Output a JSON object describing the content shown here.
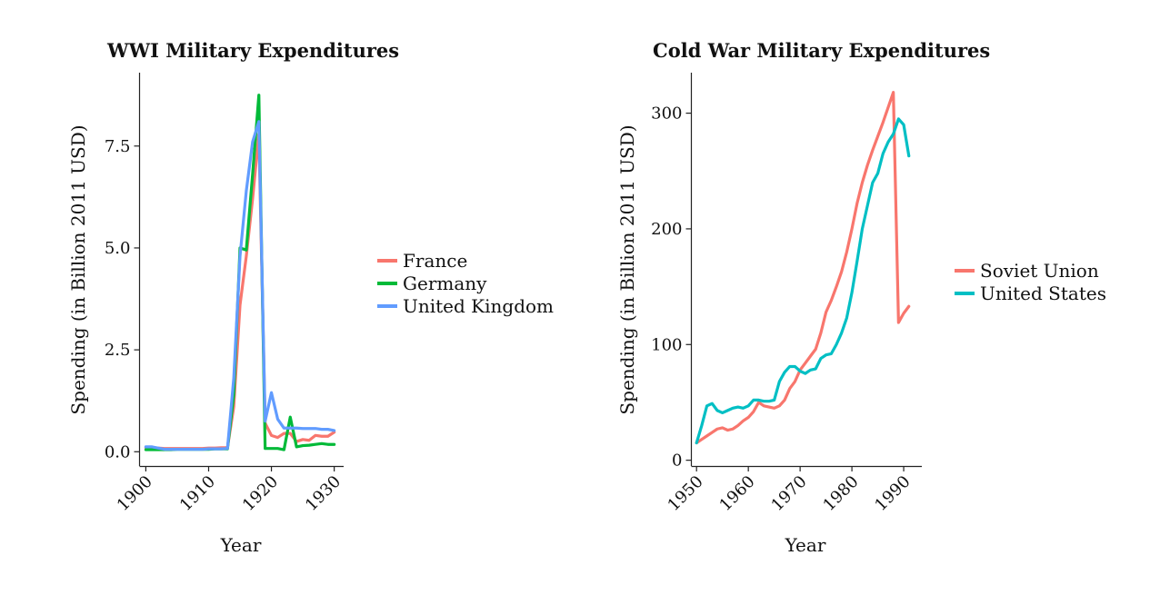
{
  "chart_data": [
    {
      "type": "line",
      "title": "WWI Military Expenditures",
      "xlabel": "Year",
      "ylabel": "Spending (in Billion 2011 USD)",
      "xlim": [
        1899,
        1931.5
      ],
      "ylim": [
        -0.35,
        9.3
      ],
      "xticks": [
        1900,
        1910,
        1920,
        1930
      ],
      "xtick_labels": [
        "1900",
        "1910",
        "1920",
        "1930"
      ],
      "yticks": [
        0,
        2.5,
        5,
        7.5
      ],
      "ytick_labels": [
        "0.0",
        "2.5",
        "5.0",
        "7.5"
      ],
      "grid": false,
      "legend_position": "right",
      "series": [
        {
          "name": "France",
          "color": "#F8766D",
          "x": [
            1900,
            1901,
            1902,
            1903,
            1904,
            1905,
            1906,
            1907,
            1908,
            1909,
            1910,
            1911,
            1912,
            1913,
            1914,
            1915,
            1916,
            1917,
            1918,
            1919,
            1920,
            1921,
            1922,
            1923,
            1924,
            1925,
            1926,
            1927,
            1928,
            1929,
            1930
          ],
          "values": [
            0.1,
            0.1,
            0.09,
            0.08,
            0.08,
            0.08,
            0.08,
            0.08,
            0.08,
            0.08,
            0.09,
            0.09,
            0.1,
            0.1,
            1.1,
            3.6,
            4.8,
            6.2,
            7.8,
            0.7,
            0.4,
            0.35,
            0.45,
            0.45,
            0.25,
            0.3,
            0.28,
            0.4,
            0.38,
            0.38,
            0.48
          ]
        },
        {
          "name": "Germany",
          "color": "#00BA38",
          "x": [
            1900,
            1901,
            1902,
            1903,
            1904,
            1905,
            1906,
            1907,
            1908,
            1909,
            1910,
            1911,
            1912,
            1913,
            1914,
            1915,
            1916,
            1917,
            1918,
            1919,
            1920,
            1921,
            1922,
            1923,
            1924,
            1925,
            1926,
            1927,
            1928,
            1929,
            1930
          ],
          "values": [
            0.05,
            0.05,
            0.05,
            0.05,
            0.05,
            0.06,
            0.06,
            0.06,
            0.06,
            0.06,
            0.06,
            0.07,
            0.07,
            0.07,
            1.4,
            5.0,
            4.95,
            6.8,
            8.75,
            0.08,
            0.08,
            0.08,
            0.05,
            0.85,
            0.12,
            0.15,
            0.16,
            0.18,
            0.2,
            0.18,
            0.18
          ]
        },
        {
          "name": "United Kingdom",
          "color": "#619CFF",
          "x": [
            1900,
            1901,
            1902,
            1903,
            1904,
            1905,
            1906,
            1907,
            1908,
            1909,
            1910,
            1911,
            1912,
            1913,
            1914,
            1915,
            1916,
            1917,
            1918,
            1919,
            1920,
            1921,
            1922,
            1923,
            1924,
            1925,
            1926,
            1927,
            1928,
            1929,
            1930
          ],
          "values": [
            0.12,
            0.12,
            0.09,
            0.06,
            0.06,
            0.06,
            0.06,
            0.06,
            0.06,
            0.06,
            0.07,
            0.07,
            0.07,
            0.08,
            1.8,
            4.8,
            6.4,
            7.6,
            8.1,
            0.75,
            1.45,
            0.8,
            0.58,
            0.58,
            0.58,
            0.57,
            0.57,
            0.57,
            0.55,
            0.55,
            0.52
          ]
        }
      ]
    },
    {
      "type": "line",
      "title": "Cold War Military Expenditures",
      "xlabel": "Year",
      "ylabel": "Spending (in Billion 2011 USD)",
      "xlim": [
        1949,
        1993.5
      ],
      "ylim": [
        -5,
        335
      ],
      "xticks": [
        1950,
        1960,
        1970,
        1980,
        1990
      ],
      "xtick_labels": [
        "1950",
        "1960",
        "1970",
        "1980",
        "1990"
      ],
      "yticks": [
        0,
        100,
        200,
        300
      ],
      "ytick_labels": [
        "0",
        "100",
        "200",
        "300"
      ],
      "grid": false,
      "legend_position": "right",
      "series": [
        {
          "name": "Soviet Union",
          "color": "#F8766D",
          "x": [
            1950,
            1951,
            1952,
            1953,
            1954,
            1955,
            1956,
            1957,
            1958,
            1959,
            1960,
            1961,
            1962,
            1963,
            1964,
            1965,
            1966,
            1967,
            1968,
            1969,
            1970,
            1971,
            1972,
            1973,
            1974,
            1975,
            1976,
            1977,
            1978,
            1979,
            1980,
            1981,
            1982,
            1983,
            1984,
            1985,
            1986,
            1987,
            1988,
            1989,
            1990,
            1991
          ],
          "values": [
            15,
            18,
            21,
            24,
            27,
            28,
            26,
            27,
            30,
            34,
            37,
            42,
            50,
            47,
            46,
            45,
            47,
            52,
            62,
            68,
            78,
            84,
            90,
            96,
            110,
            128,
            138,
            150,
            163,
            180,
            200,
            222,
            240,
            255,
            268,
            280,
            292,
            305,
            318,
            119,
            127,
            133
          ]
        },
        {
          "name": "United States",
          "color": "#00BFC4",
          "x": [
            1950,
            1951,
            1952,
            1953,
            1954,
            1955,
            1956,
            1957,
            1958,
            1959,
            1960,
            1961,
            1962,
            1963,
            1964,
            1965,
            1966,
            1967,
            1968,
            1969,
            1970,
            1971,
            1972,
            1973,
            1974,
            1975,
            1976,
            1977,
            1978,
            1979,
            1980,
            1981,
            1982,
            1983,
            1984,
            1985,
            1986,
            1987,
            1988,
            1989,
            1990,
            1991
          ],
          "values": [
            15,
            30,
            47,
            49,
            43,
            41,
            43,
            45,
            46,
            45,
            47,
            52,
            52,
            51,
            51,
            52,
            68,
            76,
            81,
            81,
            77,
            75,
            78,
            79,
            88,
            91,
            92,
            100,
            110,
            123,
            145,
            172,
            200,
            220,
            240,
            248,
            265,
            275,
            282,
            295,
            290,
            263
          ]
        }
      ]
    }
  ]
}
